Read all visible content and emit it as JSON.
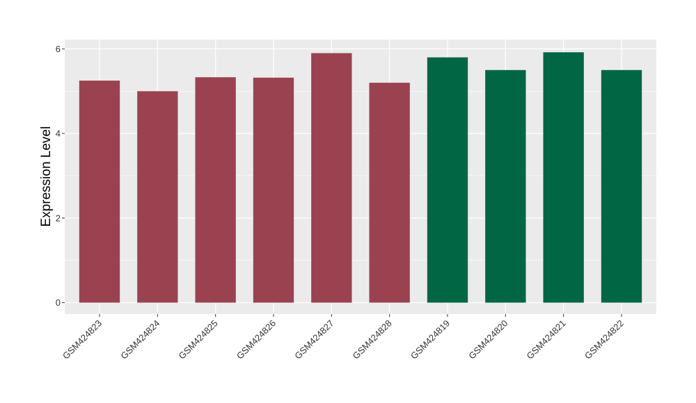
{
  "chart_data": {
    "type": "bar",
    "title": "",
    "xlabel": "",
    "ylabel": "Expression Level",
    "ylim": [
      -0.27,
      6.22
    ],
    "yticks": [
      0,
      2,
      4,
      6
    ],
    "grid": true,
    "legend": "none",
    "categories": [
      "GSM424823",
      "GSM424824",
      "GSM424825",
      "GSM424826",
      "GSM424827",
      "GSM424828",
      "GSM424819",
      "GSM424820",
      "GSM424821",
      "GSM424822"
    ],
    "values": [
      5.25,
      5.0,
      5.33,
      5.32,
      5.9,
      5.2,
      5.8,
      5.5,
      5.92,
      5.5
    ],
    "bar_colors": [
      "#9b4250",
      "#9b4250",
      "#9b4250",
      "#9b4250",
      "#9b4250",
      "#9b4250",
      "#006644",
      "#006644",
      "#006644",
      "#006644"
    ]
  }
}
